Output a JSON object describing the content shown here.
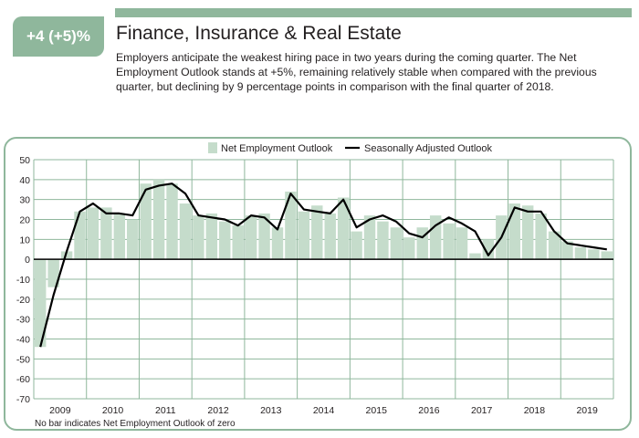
{
  "badge": {
    "text": "+4 (+5)%"
  },
  "header": {
    "title": "Finance, Insurance & Real Estate",
    "description": "Employers anticipate the weakest hiring pace in two years during the coming quarter. The Net Employment Outlook stands at +5%, remaining relatively stable when compared with the previous quarter, but declining by 9 percentage points in comparison with the final quarter of 2018."
  },
  "colors": {
    "accent": "#8fb79c",
    "bar": "#c5dccb",
    "line": "#000000",
    "grid": "#8fb79c"
  },
  "chart_data": {
    "type": "bar+line",
    "legend": {
      "placement": "top-center",
      "bar_label": "Net Employment Outlook",
      "line_label": "Seasonally Adjusted Outlook"
    },
    "ylim": [
      -70,
      50
    ],
    "yticks": [
      50,
      40,
      30,
      20,
      10,
      0,
      -10,
      -20,
      -30,
      -40,
      -50,
      -60,
      -70
    ],
    "years": [
      "2009",
      "2010",
      "2011",
      "2012",
      "2013",
      "2014",
      "2015",
      "2016",
      "2017",
      "2018",
      "2019"
    ],
    "quarters_per_year": 4,
    "quarters": [
      "2009 Q1",
      "2009 Q2",
      "2009 Q3",
      "2009 Q4",
      "2010 Q1",
      "2010 Q2",
      "2010 Q3",
      "2010 Q4",
      "2011 Q1",
      "2011 Q2",
      "2011 Q3",
      "2011 Q4",
      "2012 Q1",
      "2012 Q2",
      "2012 Q3",
      "2012 Q4",
      "2013 Q1",
      "2013 Q2",
      "2013 Q3",
      "2013 Q4",
      "2014 Q1",
      "2014 Q2",
      "2014 Q3",
      "2014 Q4",
      "2015 Q1",
      "2015 Q2",
      "2015 Q3",
      "2015 Q4",
      "2016 Q1",
      "2016 Q2",
      "2016 Q3",
      "2016 Q4",
      "2017 Q1",
      "2017 Q2",
      "2017 Q3",
      "2017 Q4",
      "2018 Q1",
      "2018 Q2",
      "2018 Q3",
      "2018 Q4",
      "2019 Q1",
      "2019 Q2",
      "2019 Q3",
      "2019 Q4"
    ],
    "series": [
      {
        "name": "Net Employment Outlook",
        "type": "bar",
        "values": [
          -44,
          -14,
          4,
          24,
          26,
          26,
          23,
          20,
          38,
          40,
          38,
          28,
          22,
          23,
          19,
          17,
          22,
          23,
          16,
          34,
          24,
          27,
          23,
          31,
          14,
          22,
          19,
          16,
          11,
          16,
          22,
          18,
          16,
          3,
          10,
          22,
          28,
          27,
          23,
          14,
          9,
          6,
          5,
          4
        ]
      },
      {
        "name": "Seasonally Adjusted Outlook",
        "type": "line",
        "values": [
          -44,
          -18,
          4,
          24,
          28,
          23,
          23,
          22,
          35,
          37,
          38,
          33,
          22,
          21,
          20,
          17,
          22,
          21,
          15,
          33,
          25,
          24,
          23,
          30,
          16,
          20,
          22,
          19,
          13,
          11,
          17,
          21,
          18,
          14,
          2,
          11,
          26,
          24,
          24,
          14,
          8,
          7,
          6,
          5
        ]
      }
    ],
    "footnote": "No bar indicates Net Employment Outlook of zero"
  }
}
